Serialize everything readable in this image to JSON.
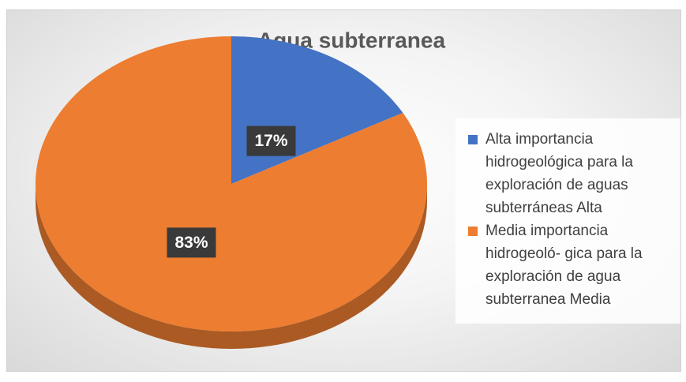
{
  "chart_data": {
    "type": "pie",
    "title": "Agua subterranea",
    "categories": [
      "Alta importancia hidrogeológica para la exploración de aguas subterráneas Alta",
      "Media importancia hidrogeoló- gica para la exploración de agua subterranea Media"
    ],
    "values": [
      17,
      83
    ],
    "value_labels": [
      "17%",
      "83%"
    ],
    "colors": [
      "#4472c4",
      "#ed7d31"
    ],
    "legend": "right"
  }
}
